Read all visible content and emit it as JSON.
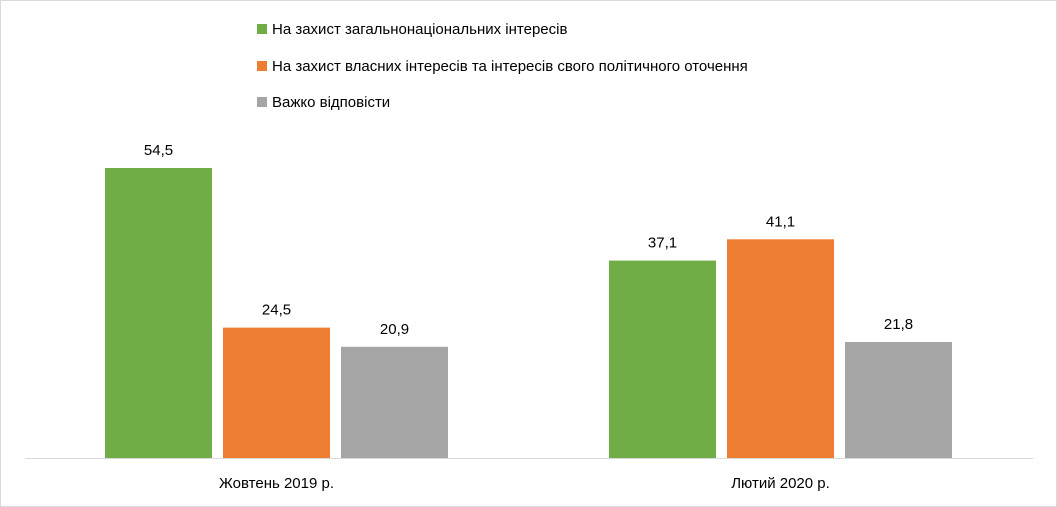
{
  "chart_data": {
    "type": "bar",
    "title": "",
    "xlabel": "",
    "ylabel": "",
    "ylim": [
      0,
      60
    ],
    "grid": false,
    "legend_position": "top",
    "categories": [
      "Жовтень 2019 р.",
      "Лютий 2020 р."
    ],
    "series": [
      {
        "name": "На захист загальнонаціональних інтересів",
        "color": "#70AD47",
        "values": [
          54.5,
          37.1
        ],
        "labels": [
          "54,5",
          "37,1"
        ]
      },
      {
        "name": "На захист власних інтересів та інтересів свого політичного оточення",
        "color": "#ED7D31",
        "values": [
          24.5,
          41.1
        ],
        "labels": [
          "24,5",
          "41,1"
        ]
      },
      {
        "name": "Важко відповісти",
        "color": "#A5A5A5",
        "values": [
          20.9,
          21.8
        ],
        "labels": [
          "20,9",
          "21,8"
        ]
      }
    ]
  }
}
